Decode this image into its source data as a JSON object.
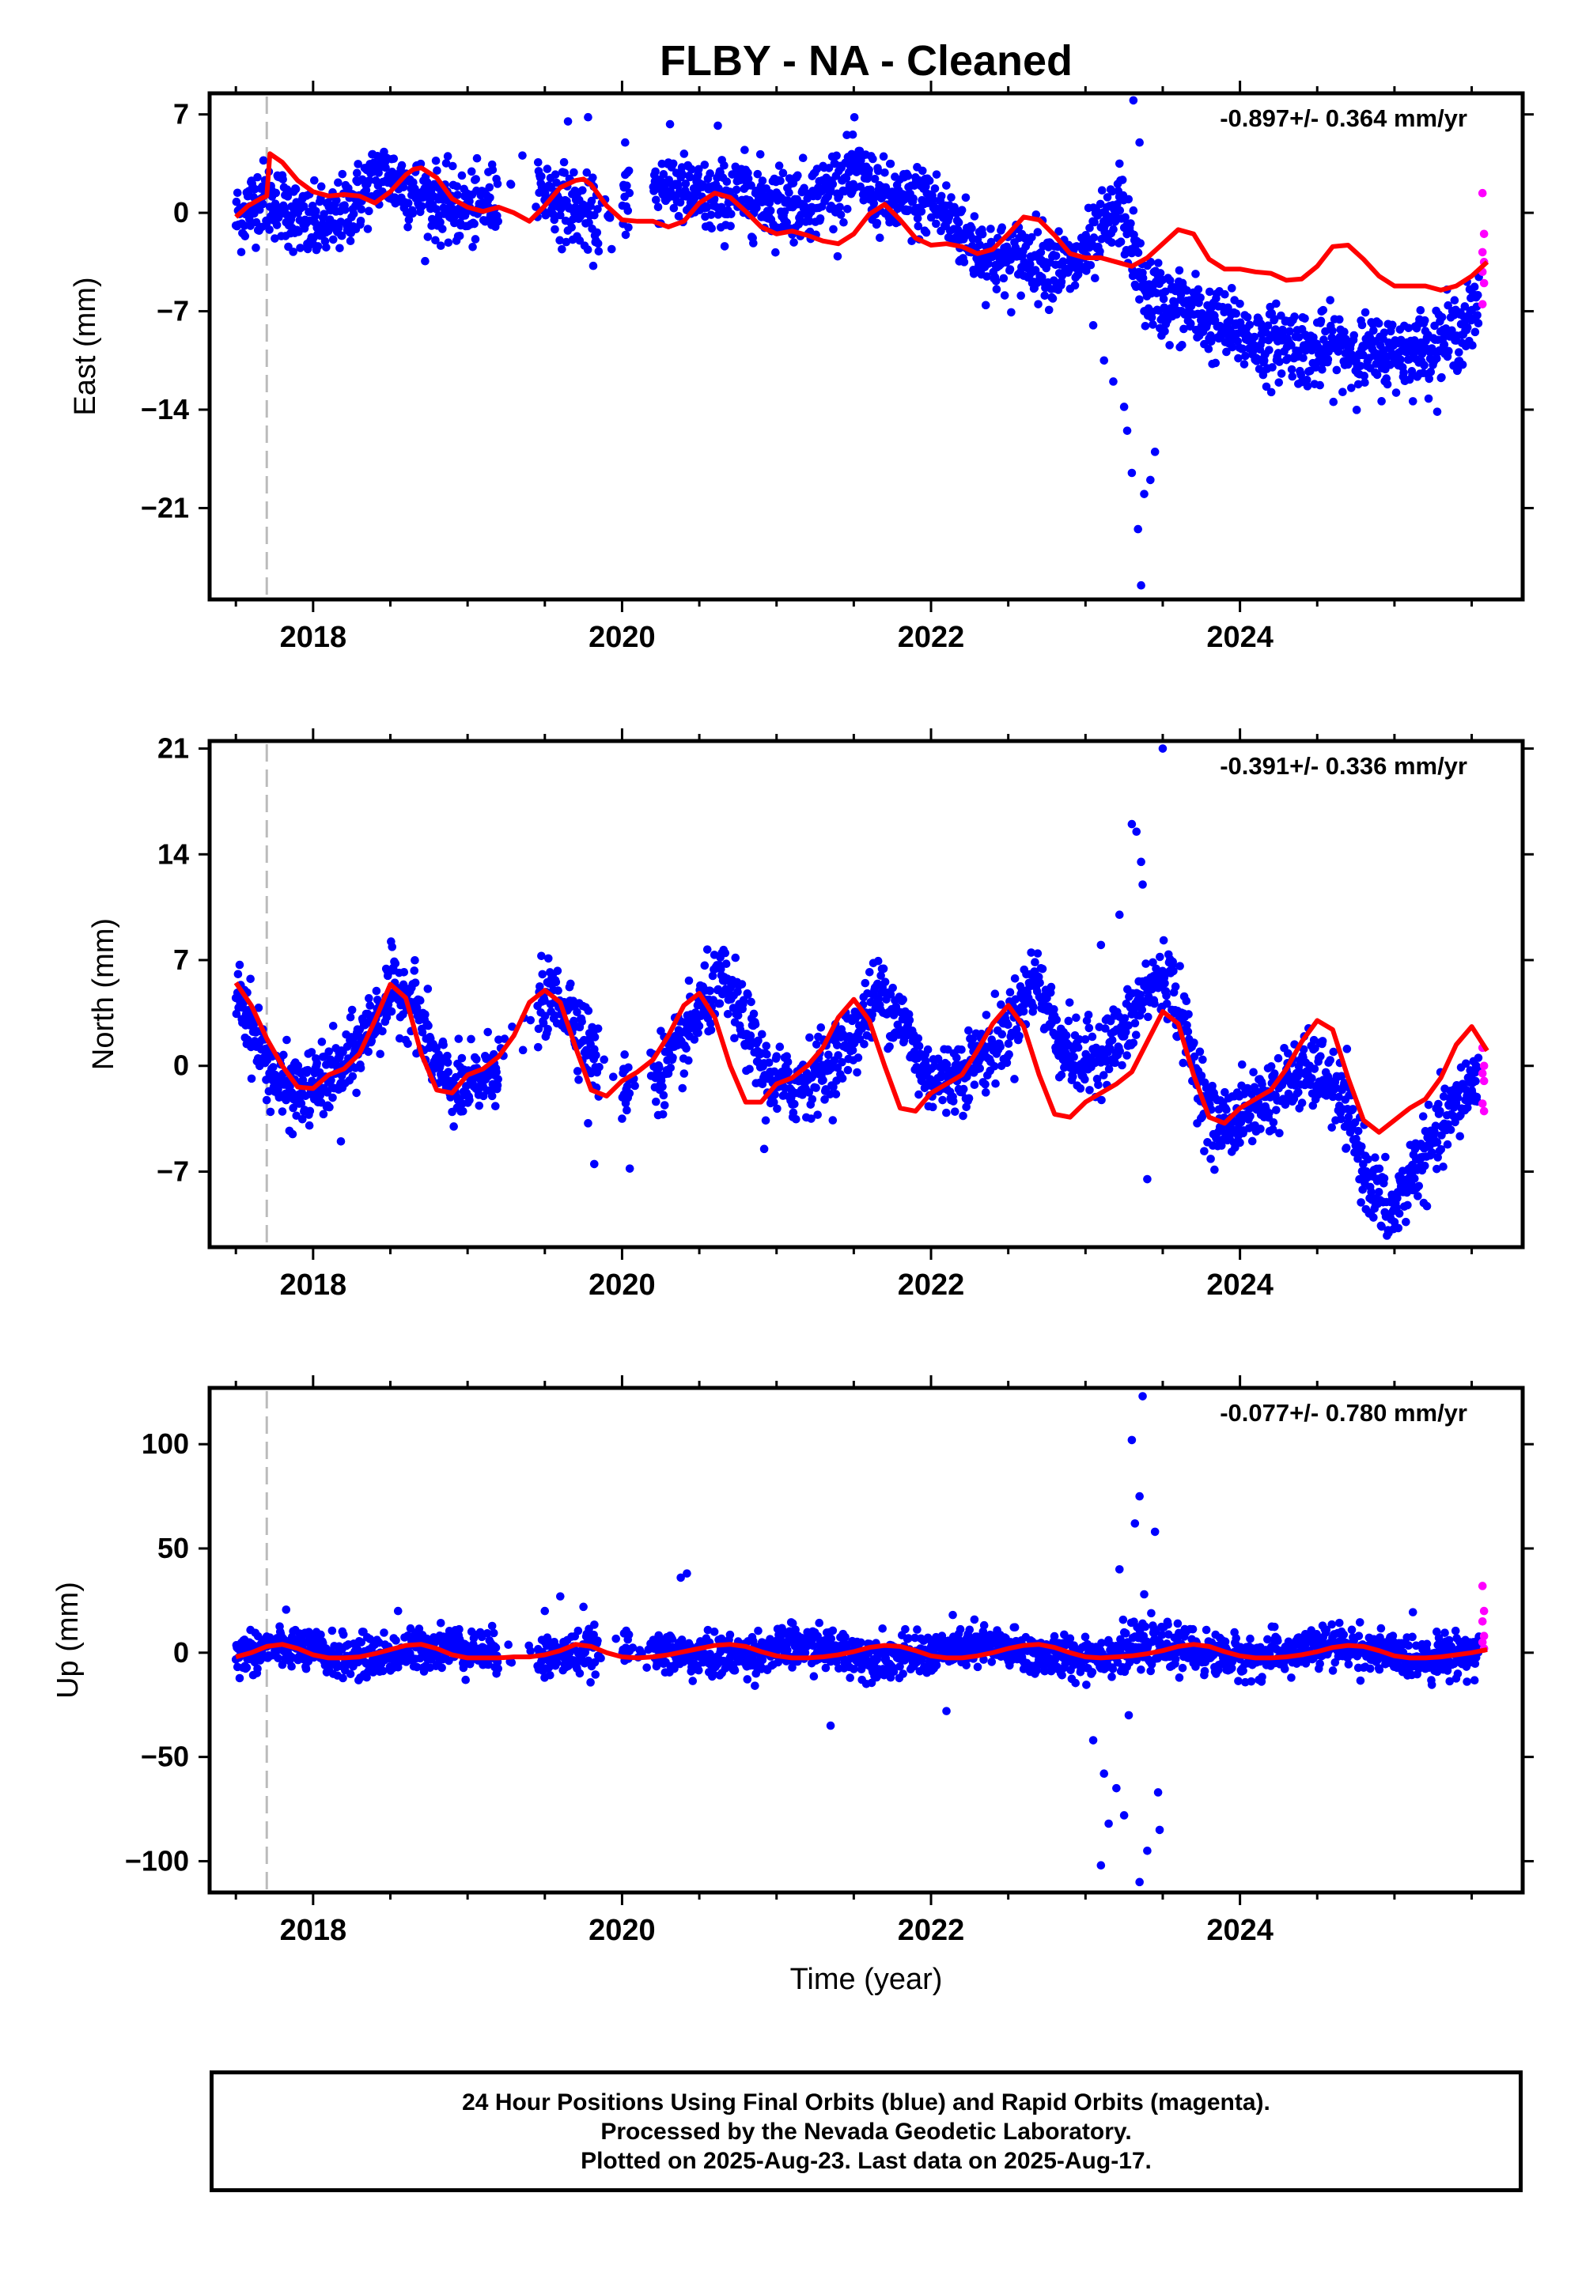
{
  "page_title": "FLBY  - NA - Cleaned",
  "colors": {
    "final_orbits": "#0000ff",
    "rapid_orbits": "#ff00ff",
    "model_fit": "#ff0000",
    "dashed_line": "#bbbbbb",
    "frame": "#000000"
  },
  "x_axis": {
    "xlabel": "Time (year)",
    "xlim": [
      2017.33,
      2025.83
    ],
    "ticks": [
      2018,
      2020,
      2022,
      2024
    ],
    "tick_labels": [
      "2018",
      "2020",
      "2022",
      "2024"
    ],
    "minor_tick_step": 0.5
  },
  "vertical_marker_year": 2017.7,
  "rapid_start_year": 2025.55,
  "chart_data": [
    {
      "type": "scatter",
      "component": "east",
      "ylabel": "East (mm)",
      "rate_label": "-0.897+/- 0.364 mm/yr",
      "ylim": [
        -27.5,
        8.5
      ],
      "yticks": [
        7,
        0,
        -7,
        -14,
        -21
      ],
      "ytick_labels": [
        "7",
        "0",
        "−7",
        "−14",
        "−21"
      ],
      "segments": [
        {
          "start": 2017.5,
          "end": 2025.55,
          "values": [
            -0.5,
            1.2,
            0.5,
            -1.0,
            -0.8,
            0.8,
            2.8,
            2.0,
            1.0,
            0.4,
            0.2,
            1.0,
            2.2,
            1.4,
            0.5,
            -0.5,
            0.2,
            1.2,
            2.2,
            1.2,
            0.8,
            1.4,
            1.0,
            0.8,
            0.8,
            2.0,
            2.8,
            1.0,
            0.6,
            1.0,
            -0.8,
            -2.5,
            -3.5,
            -3.0,
            -3.5,
            -4.0,
            -2.0,
            0.4,
            -5.5,
            -6.5,
            -7.0,
            -8.0,
            -8.5,
            -9.5,
            -9.0,
            -10.0,
            -9.5,
            -10.0,
            -10.0,
            -9.8,
            -9.5,
            -8.5,
            -7.0
          ]
        }
      ],
      "spikes": [
        [
          2023.05,
          -8.0
        ],
        [
          2023.12,
          -10.5
        ],
        [
          2023.18,
          -12.0
        ],
        [
          2023.25,
          -13.8
        ],
        [
          2023.27,
          -15.5
        ],
        [
          2023.3,
          -18.5
        ],
        [
          2023.34,
          -22.5
        ],
        [
          2023.36,
          -26.5
        ],
        [
          2023.38,
          -20.0
        ],
        [
          2023.42,
          -19.0
        ],
        [
          2023.45,
          -17.0
        ],
        [
          2023.31,
          8.0
        ],
        [
          2023.35,
          5.0
        ],
        [
          2023.22,
          3.5
        ],
        [
          2019.65,
          6.5
        ],
        [
          2019.78,
          6.8
        ],
        [
          2020.02,
          5.0
        ],
        [
          2020.62,
          6.2
        ]
      ],
      "fit": {
        "x": [
          2017.5,
          2017.58,
          2017.66,
          2017.7,
          2017.72,
          2017.8,
          2017.9,
          2018.0,
          2018.1,
          2018.2,
          2018.3,
          2018.4,
          2018.5,
          2018.6,
          2018.65,
          2018.7,
          2018.8,
          2018.9,
          2019.0,
          2019.1,
          2019.2,
          2019.3,
          2019.4,
          2019.5,
          2019.6,
          2019.7,
          2019.75,
          2019.8,
          2019.9,
          2020.0,
          2020.1,
          2020.2,
          2020.3,
          2020.4,
          2020.5,
          2020.6,
          2020.7,
          2020.8,
          2020.9,
          2021.0,
          2021.1,
          2021.2,
          2021.3,
          2021.4,
          2021.5,
          2021.6,
          2021.7,
          2021.8,
          2021.9,
          2022.0,
          2022.1,
          2022.2,
          2022.3,
          2022.4,
          2022.5,
          2022.6,
          2022.7,
          2022.8,
          2022.9,
          2023.0,
          2023.1,
          2023.2,
          2023.3,
          2023.4,
          2023.5,
          2023.6,
          2023.7,
          2023.8,
          2023.9,
          2024.0,
          2024.1,
          2024.2,
          2024.3,
          2024.4,
          2024.5,
          2024.6,
          2024.7,
          2024.8,
          2024.9,
          2025.0,
          2025.1,
          2025.2,
          2025.3,
          2025.4,
          2025.5,
          2025.55,
          2025.6
        ],
        "y": [
          -0.3,
          0.5,
          1.0,
          1.2,
          4.2,
          3.6,
          2.3,
          1.5,
          1.2,
          1.3,
          1.2,
          0.7,
          1.5,
          2.7,
          3.1,
          3.2,
          2.5,
          1.0,
          0.4,
          0.1,
          0.4,
          0.0,
          -0.6,
          0.5,
          1.8,
          2.3,
          2.4,
          2.0,
          0.5,
          -0.5,
          -0.6,
          -0.6,
          -1.0,
          -0.6,
          0.7,
          1.4,
          1.1,
          0.1,
          -1.0,
          -1.5,
          -1.3,
          -1.6,
          -2.0,
          -2.2,
          -1.5,
          -0.1,
          0.6,
          -0.5,
          -1.8,
          -2.3,
          -2.2,
          -2.4,
          -2.9,
          -2.6,
          -1.5,
          -0.3,
          -0.5,
          -1.6,
          -2.9,
          -3.2,
          -3.2,
          -3.5,
          -3.8,
          -3.2,
          -2.2,
          -1.2,
          -1.5,
          -3.3,
          -4.0,
          -4.0,
          -4.2,
          -4.3,
          -4.8,
          -4.7,
          -3.8,
          -2.4,
          -2.3,
          -3.3,
          -4.5,
          -5.2,
          -5.2,
          -5.2,
          -5.5,
          -5.2,
          -4.5,
          -4.0,
          -3.5
        ]
      }
    },
    {
      "type": "scatter",
      "component": "north",
      "ylabel": "North (mm)",
      "rate_label": "-0.391+/- 0.336 mm/yr",
      "ylim": [
        -12,
        21.5
      ],
      "yticks": [
        21,
        14,
        7,
        0,
        -7
      ],
      "ytick_labels": [
        "21",
        "14",
        "7",
        "0",
        "−7"
      ],
      "segments": [
        {
          "start": 2017.5,
          "end": 2025.55,
          "values": [
            5.5,
            1.5,
            -1.5,
            -1.8,
            -1.0,
            0.0,
            2.5,
            5.0,
            4.5,
            0.0,
            -1.8,
            -1.0,
            0.5,
            3.0,
            4.5,
            4.0,
            1.0,
            -1.5,
            -1.0,
            -0.5,
            1.0,
            4.0,
            5.5,
            2.5,
            -1.0,
            -1.5,
            -0.5,
            0.5,
            2.5,
            5.0,
            3.0,
            -0.5,
            -1.0,
            0.0,
            1.0,
            3.0,
            6.0,
            2.0,
            0.0,
            1.0,
            2.0,
            5.0,
            6.0,
            1.0,
            -4.0,
            -3.5,
            -2.5,
            -1.5,
            -0.5,
            -0.5,
            -3.0,
            -7.5,
            -10.0,
            -7.0,
            -5.0,
            -2.5,
            -0.5
          ]
        }
      ],
      "spikes": [
        [
          2023.3,
          16.0
        ],
        [
          2023.33,
          15.5
        ],
        [
          2023.36,
          13.5
        ],
        [
          2023.37,
          12.0
        ],
        [
          2023.5,
          21.0
        ],
        [
          2023.22,
          10.0
        ],
        [
          2023.4,
          -7.5
        ],
        [
          2023.1,
          8.0
        ],
        [
          2019.82,
          -6.5
        ],
        [
          2020.05,
          -6.8
        ],
        [
          2020.0,
          -3.5
        ],
        [
          2019.78,
          -3.8
        ],
        [
          2020.92,
          -5.5
        ],
        [
          2018.18,
          -5.0
        ]
      ],
      "fit": {
        "x": [
          2017.5,
          2017.6,
          2017.7,
          2017.8,
          2017.9,
          2018.0,
          2018.1,
          2018.2,
          2018.3,
          2018.4,
          2018.5,
          2018.6,
          2018.7,
          2018.8,
          2018.9,
          2019.0,
          2019.1,
          2019.2,
          2019.3,
          2019.4,
          2019.5,
          2019.6,
          2019.7,
          2019.8,
          2019.9,
          2020.0,
          2020.1,
          2020.2,
          2020.3,
          2020.4,
          2020.5,
          2020.6,
          2020.7,
          2020.8,
          2020.9,
          2021.0,
          2021.1,
          2021.2,
          2021.3,
          2021.4,
          2021.5,
          2021.6,
          2021.7,
          2021.8,
          2021.9,
          2022.0,
          2022.1,
          2022.2,
          2022.3,
          2022.4,
          2022.5,
          2022.6,
          2022.7,
          2022.8,
          2022.9,
          2023.0,
          2023.1,
          2023.2,
          2023.3,
          2023.4,
          2023.5,
          2023.6,
          2023.7,
          2023.8,
          2023.9,
          2024.0,
          2024.1,
          2024.2,
          2024.3,
          2024.4,
          2024.5,
          2024.6,
          2024.7,
          2024.8,
          2024.9,
          2025.0,
          2025.1,
          2025.2,
          2025.3,
          2025.4,
          2025.5,
          2025.6
        ],
        "y": [
          5.5,
          4.0,
          1.8,
          0.0,
          -1.4,
          -1.5,
          -0.6,
          -0.2,
          0.8,
          3.0,
          5.4,
          4.5,
          0.8,
          -1.6,
          -1.8,
          -0.6,
          -0.2,
          0.6,
          2.0,
          4.2,
          5.0,
          4.2,
          1.2,
          -1.6,
          -2.0,
          -1.0,
          -0.4,
          0.4,
          2.0,
          4.0,
          4.8,
          3.2,
          0.0,
          -2.4,
          -2.4,
          -1.2,
          -0.8,
          0.0,
          1.2,
          3.2,
          4.4,
          3.0,
          0.0,
          -2.8,
          -3.0,
          -1.8,
          -1.2,
          -0.6,
          1.0,
          2.8,
          4.0,
          2.6,
          -0.6,
          -3.2,
          -3.4,
          -2.4,
          -1.8,
          -1.2,
          -0.4,
          1.6,
          3.6,
          2.8,
          -0.6,
          -3.4,
          -3.8,
          -2.8,
          -2.2,
          -1.6,
          -0.2,
          1.6,
          3.0,
          2.4,
          -0.8,
          -3.6,
          -4.4,
          -3.6,
          -2.8,
          -2.2,
          -0.8,
          1.4,
          2.6,
          1.0
        ]
      }
    },
    {
      "type": "scatter",
      "component": "up",
      "ylabel": "Up (mm)",
      "rate_label": "-0.077+/- 0.780 mm/yr",
      "ylim": [
        -115,
        127
      ],
      "yticks": [
        100,
        50,
        0,
        -50,
        -100
      ],
      "ytick_labels": [
        "100",
        "50",
        "0",
        "−50",
        "−100"
      ],
      "segments": [
        {
          "start": 2017.5,
          "end": 2025.55,
          "values": [
            -1.0,
            1.0,
            3.0,
            2.0,
            -1.0,
            -2.0,
            -2.0,
            -1.0,
            1.0,
            3.0,
            3.0,
            1.0,
            -1.0,
            -2.0,
            -2.0,
            -1.0,
            1.0,
            3.0,
            3.0,
            1.0,
            -1.0,
            -2.0,
            -2.0,
            -1.0,
            1.0,
            3.0,
            3.0,
            1.0,
            -1.0,
            -2.0,
            -2.0,
            -1.0,
            1.0,
            3.0,
            3.0,
            1.0,
            -1.0,
            -2.0,
            -2.0,
            -1.0,
            1.0,
            3.0,
            3.0,
            1.0,
            -1.0,
            -2.0,
            -2.0,
            -1.0,
            1.0,
            3.0,
            3.0,
            1.0,
            -1.0,
            -2.0,
            -2.0,
            -1.0,
            1.0
          ]
        }
      ],
      "spikes": [
        [
          2023.3,
          102.0
        ],
        [
          2023.37,
          123.0
        ],
        [
          2023.35,
          75.0
        ],
        [
          2023.32,
          62.0
        ],
        [
          2023.45,
          58.0
        ],
        [
          2023.1,
          -102.0
        ],
        [
          2023.15,
          -82.0
        ],
        [
          2023.2,
          -65.0
        ],
        [
          2023.25,
          -78.0
        ],
        [
          2023.35,
          -110.0
        ],
        [
          2023.4,
          -95.0
        ],
        [
          2023.48,
          -85.0
        ],
        [
          2023.47,
          -67.0
        ],
        [
          2023.12,
          -58.0
        ],
        [
          2023.05,
          -42.0
        ],
        [
          2023.28,
          -30.0
        ],
        [
          2023.22,
          40.0
        ],
        [
          2023.38,
          28.0
        ],
        [
          2020.38,
          36.0
        ],
        [
          2020.42,
          38.0
        ],
        [
          2021.35,
          -35.0
        ],
        [
          2019.6,
          27.0
        ],
        [
          2019.75,
          22.0
        ],
        [
          2019.5,
          20.0
        ],
        [
          2018.55,
          20.0
        ],
        [
          2022.1,
          -28.0
        ]
      ],
      "fit": {
        "x": [
          2017.5,
          2017.6,
          2017.7,
          2017.8,
          2017.9,
          2018.0,
          2018.1,
          2018.2,
          2018.3,
          2018.4,
          2018.5,
          2018.6,
          2018.7,
          2018.8,
          2018.9,
          2019.0,
          2019.1,
          2019.2,
          2019.3,
          2019.4,
          2019.5,
          2019.6,
          2019.7,
          2019.8,
          2019.9,
          2020.0,
          2020.1,
          2020.2,
          2020.3,
          2020.4,
          2020.5,
          2020.6,
          2020.7,
          2020.8,
          2020.9,
          2021.0,
          2021.1,
          2021.2,
          2021.3,
          2021.4,
          2021.5,
          2021.6,
          2021.7,
          2021.8,
          2021.9,
          2022.0,
          2022.1,
          2022.2,
          2022.3,
          2022.4,
          2022.5,
          2022.6,
          2022.7,
          2022.8,
          2022.9,
          2023.0,
          2023.1,
          2023.2,
          2023.3,
          2023.4,
          2023.5,
          2023.6,
          2023.7,
          2023.8,
          2023.9,
          2024.0,
          2024.1,
          2024.2,
          2024.3,
          2024.4,
          2024.5,
          2024.6,
          2024.7,
          2024.8,
          2024.9,
          2025.0,
          2025.1,
          2025.2,
          2025.3,
          2025.4,
          2025.5,
          2025.6
        ],
        "y": [
          -2.0,
          0.0,
          3.0,
          4.0,
          2.0,
          -1.0,
          -2.5,
          -2.5,
          -2.0,
          -0.5,
          1.5,
          3.5,
          4.0,
          2.0,
          -1.0,
          -2.5,
          -2.5,
          -2.5,
          -2.0,
          -2.0,
          -1.0,
          1.0,
          4.0,
          3.0,
          0.0,
          -2.0,
          -2.5,
          -2.0,
          -1.0,
          0.5,
          2.0,
          3.5,
          4.0,
          3.0,
          0.5,
          -1.5,
          -2.5,
          -2.5,
          -2.0,
          -1.0,
          0.5,
          2.5,
          3.5,
          3.0,
          1.0,
          -1.5,
          -2.5,
          -2.5,
          -1.5,
          0.0,
          2.0,
          3.5,
          4.0,
          2.5,
          0.0,
          -2.0,
          -2.5,
          -2.0,
          -1.5,
          -0.5,
          1.0,
          3.0,
          4.0,
          3.0,
          0.5,
          -1.5,
          -2.5,
          -2.5,
          -2.0,
          -1.0,
          0.5,
          2.5,
          3.5,
          3.0,
          1.0,
          -1.5,
          -2.5,
          -2.5,
          -2.0,
          -1.0,
          0.0,
          1.5
        ]
      }
    }
  ],
  "rapid_points": {
    "east": [
      1.4,
      -1.5,
      -2.8,
      -3.5,
      -4.2,
      -5.0,
      -6.5
    ],
    "north": [
      1.2,
      0.0,
      -0.5,
      -1.0,
      -2.5,
      -3.0
    ],
    "up": [
      32,
      20,
      15,
      8,
      5,
      2
    ]
  },
  "caption": {
    "line1": "24 Hour Positions Using Final Orbits (blue) and Rapid Orbits (magenta).",
    "line2": "Processed by the Nevada Geodetic Laboratory.",
    "line3": "Plotted on 2025-Aug-23. Last data on 2025-Aug-17."
  }
}
